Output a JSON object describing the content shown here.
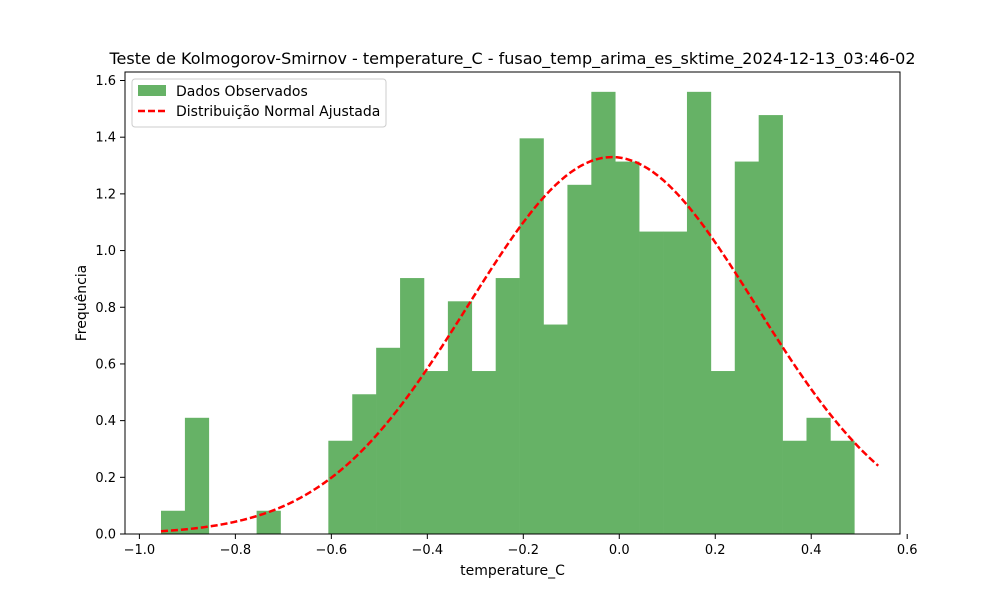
{
  "chart_data": {
    "type": "bar",
    "title": "Teste de Kolmogorov-Smirnov - temperature_C - fusao_temp_arima_es_sktime_2024-12-13_03:46-02",
    "xlabel": "temperature_C",
    "ylabel": "Frequência",
    "xlim": [
      -1.03,
      0.585
    ],
    "ylim": [
      0,
      1.63
    ],
    "xticks": [
      -1.0,
      -0.8,
      -0.6,
      -0.4,
      -0.2,
      0.0,
      0.2,
      0.4,
      0.6
    ],
    "xtick_labels": [
      "−1.0",
      "−0.8",
      "−0.6",
      "−0.4",
      "−0.2",
      "0.0",
      "0.2",
      "0.4",
      "0.6"
    ],
    "yticks": [
      0.0,
      0.2,
      0.4,
      0.6,
      0.8,
      1.0,
      1.2,
      1.4,
      1.6
    ],
    "ytick_labels": [
      "0.0",
      "0.2",
      "0.4",
      "0.6",
      "0.8",
      "1.0",
      "1.2",
      "1.4",
      "1.6"
    ],
    "grid": false,
    "legend_position": "top-left",
    "series": [
      {
        "name": "Dados Observados",
        "kind": "histogram",
        "color": "#66b266",
        "bin_start": -0.955,
        "bin_width": 0.04982,
        "values": [
          0.082,
          0.41,
          0.0,
          0.0,
          0.082,
          0.0,
          0.0,
          0.329,
          0.493,
          0.657,
          0.903,
          0.575,
          0.821,
          0.575,
          0.903,
          1.396,
          0.739,
          1.232,
          1.56,
          1.314,
          1.067,
          1.067,
          1.56,
          0.575,
          1.314,
          1.478,
          0.329,
          0.41,
          0.329,
          0.0
        ]
      },
      {
        "name": "Distribuição Normal Ajustada",
        "kind": "line",
        "color": "#ff0000",
        "dashed": true,
        "mean": -0.015,
        "std": 0.3
      }
    ]
  }
}
